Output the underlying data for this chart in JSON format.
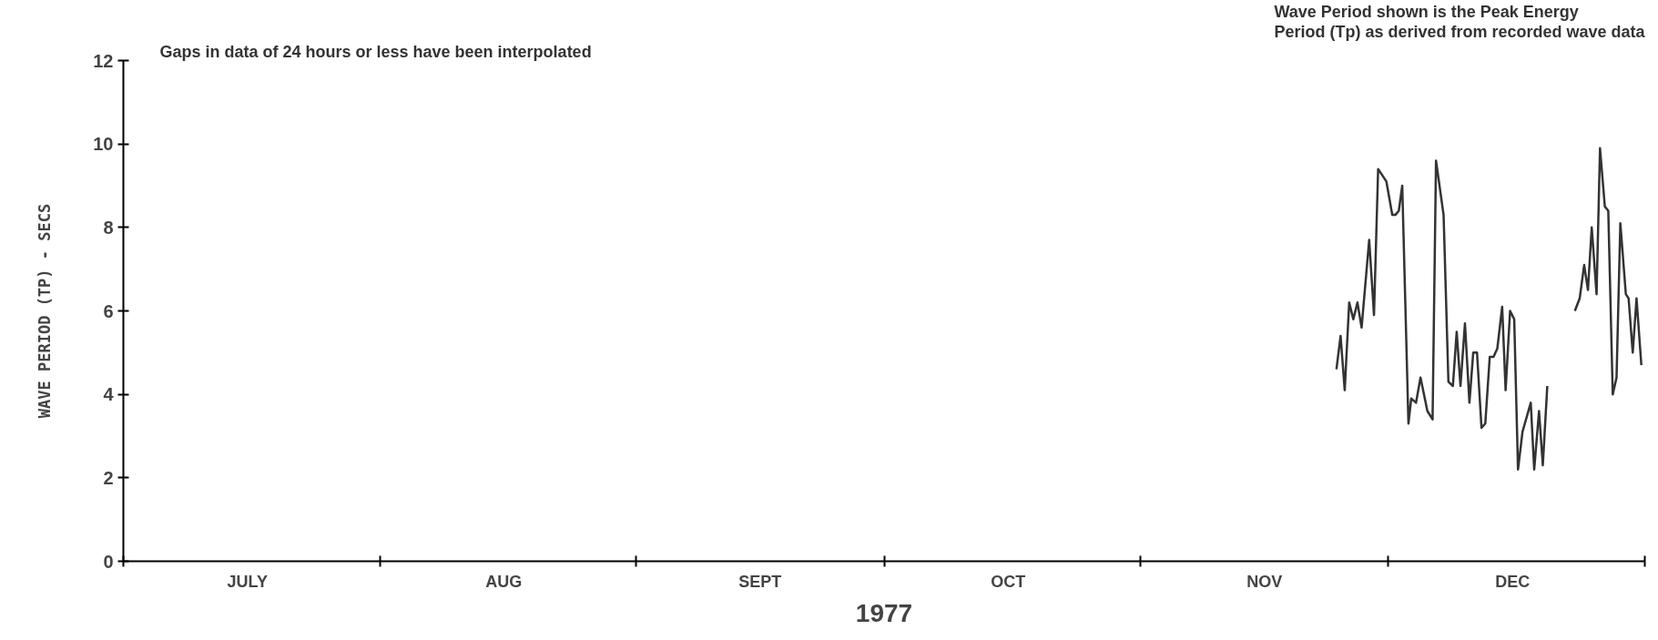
{
  "chart_data": {
    "type": "line",
    "ylabel": "WAVE PERIOD (TP) - SECS",
    "xlabel": "1977",
    "annotations": [
      "Gaps in data of 24 hours or less have been interpolated",
      "Wave Period shown is the Peak Energy\nPeriod (Tp) as derived from recorded wave data"
    ],
    "x": [
      "1977-11-24T17:00",
      "1977-11-25T05:00",
      "1977-11-25T17:00",
      "1977-11-26T06:00",
      "1977-11-26T18:00",
      "1977-11-27T06:00",
      "1977-11-27T18:00",
      "1977-11-28T16:00",
      "1977-11-29T06:00",
      "1977-11-29T18:00",
      "1977-11-30T18:00",
      "1977-12-01T11:00",
      "1977-12-01T20:00",
      "1977-12-02T06:00",
      "1977-12-02T16:00",
      "1977-12-03T10:00",
      "1977-12-03T18:00",
      "1977-12-04T08:00",
      "1977-12-04T21:00",
      "1977-12-05T17:00",
      "1977-12-06T08:00",
      "1977-12-06T18:00",
      "1977-12-07T16:00",
      "1977-12-08T06:00",
      "1977-12-08T19:00",
      "1977-12-09T06:00",
      "1977-12-09T17:00",
      "1977-12-10T06:00",
      "1977-12-10T19:00",
      "1977-12-11T06:00",
      "1977-12-11T17:00",
      "1977-12-12T06:00",
      "1977-12-12T17:00",
      "1977-12-13T06:00",
      "1977-12-13T17:00",
      "1977-12-14T04:00",
      "1977-12-14T18:00",
      "1977-12-15T04:00",
      "1977-12-15T17:00",
      "1977-12-16T05:00",
      "1977-12-16T16:00",
      "1977-12-17T05:00",
      "1977-12-18T05:00",
      "1977-12-18T15:00",
      "1977-12-19T05:00",
      "1977-12-19T16:00",
      "1977-12-20T05:00",
      "1977-12-21T21:00",
      "1977-12-23T13:00",
      "1977-12-24T03:00",
      "1977-12-24T16:00",
      "1977-12-25T03:00",
      "1977-12-25T14:00",
      "1977-12-26T04:00",
      "1977-12-26T14:00",
      "1977-12-27T04:00",
      "1977-12-27T14:00",
      "1977-12-28T03:00",
      "1977-12-28T14:00",
      "1977-12-29T01:00",
      "1977-12-29T17:00",
      "1977-12-30T01:00",
      "1977-12-30T13:00",
      "1977-12-31T00:00",
      "1977-12-31T14:00"
    ],
    "series": [
      {
        "color": "#333333",
        "values": [
          4.6,
          5.4,
          4.1,
          6.2,
          5.8,
          6.2,
          5.6,
          7.7,
          5.9,
          9.4,
          9.1,
          8.3,
          8.3,
          8.4,
          9.0,
          3.3,
          3.9,
          3.8,
          4.4,
          3.6,
          3.4,
          9.6,
          8.3,
          4.3,
          4.2,
          5.5,
          4.2,
          5.7,
          3.8,
          5.0,
          5.0,
          3.2,
          3.3,
          4.9,
          4.9,
          5.1,
          6.1,
          4.1,
          6.0,
          5.8,
          2.2,
          3.1,
          3.8,
          2.2,
          3.6,
          2.3,
          4.2,
          null,
          6.0,
          6.3,
          7.1,
          6.5,
          8.0,
          6.4,
          9.9,
          8.5,
          8.4,
          4.0,
          4.4,
          8.1,
          6.4,
          6.3,
          5.0,
          6.3,
          4.7
        ]
      }
    ],
    "xlim": [
      "1977-07-01",
      "1978-01-01"
    ],
    "xticks": [
      {
        "value": "1977-07-01",
        "label": null
      },
      {
        "value": "1977-07-16",
        "label": "JULY"
      },
      {
        "value": "1977-08-01",
        "label": null
      },
      {
        "value": "1977-08-16",
        "label": "AUG"
      },
      {
        "value": "1977-09-01",
        "label": null
      },
      {
        "value": "1977-09-16",
        "label": "SEPT"
      },
      {
        "value": "1977-10-01",
        "label": null
      },
      {
        "value": "1977-10-16",
        "label": "OCT"
      },
      {
        "value": "1977-11-01",
        "label": null
      },
      {
        "value": "1977-11-16",
        "label": "NOV"
      },
      {
        "value": "1977-12-01",
        "label": null
      },
      {
        "value": "1977-12-16",
        "label": "DEC"
      },
      {
        "value": "1978-01-01",
        "label": null
      }
    ],
    "ylim": [
      0,
      12
    ],
    "yticks": [
      0,
      2,
      4,
      6,
      8,
      10,
      12
    ],
    "grid": false,
    "marker": "none",
    "line_style": "solid"
  }
}
